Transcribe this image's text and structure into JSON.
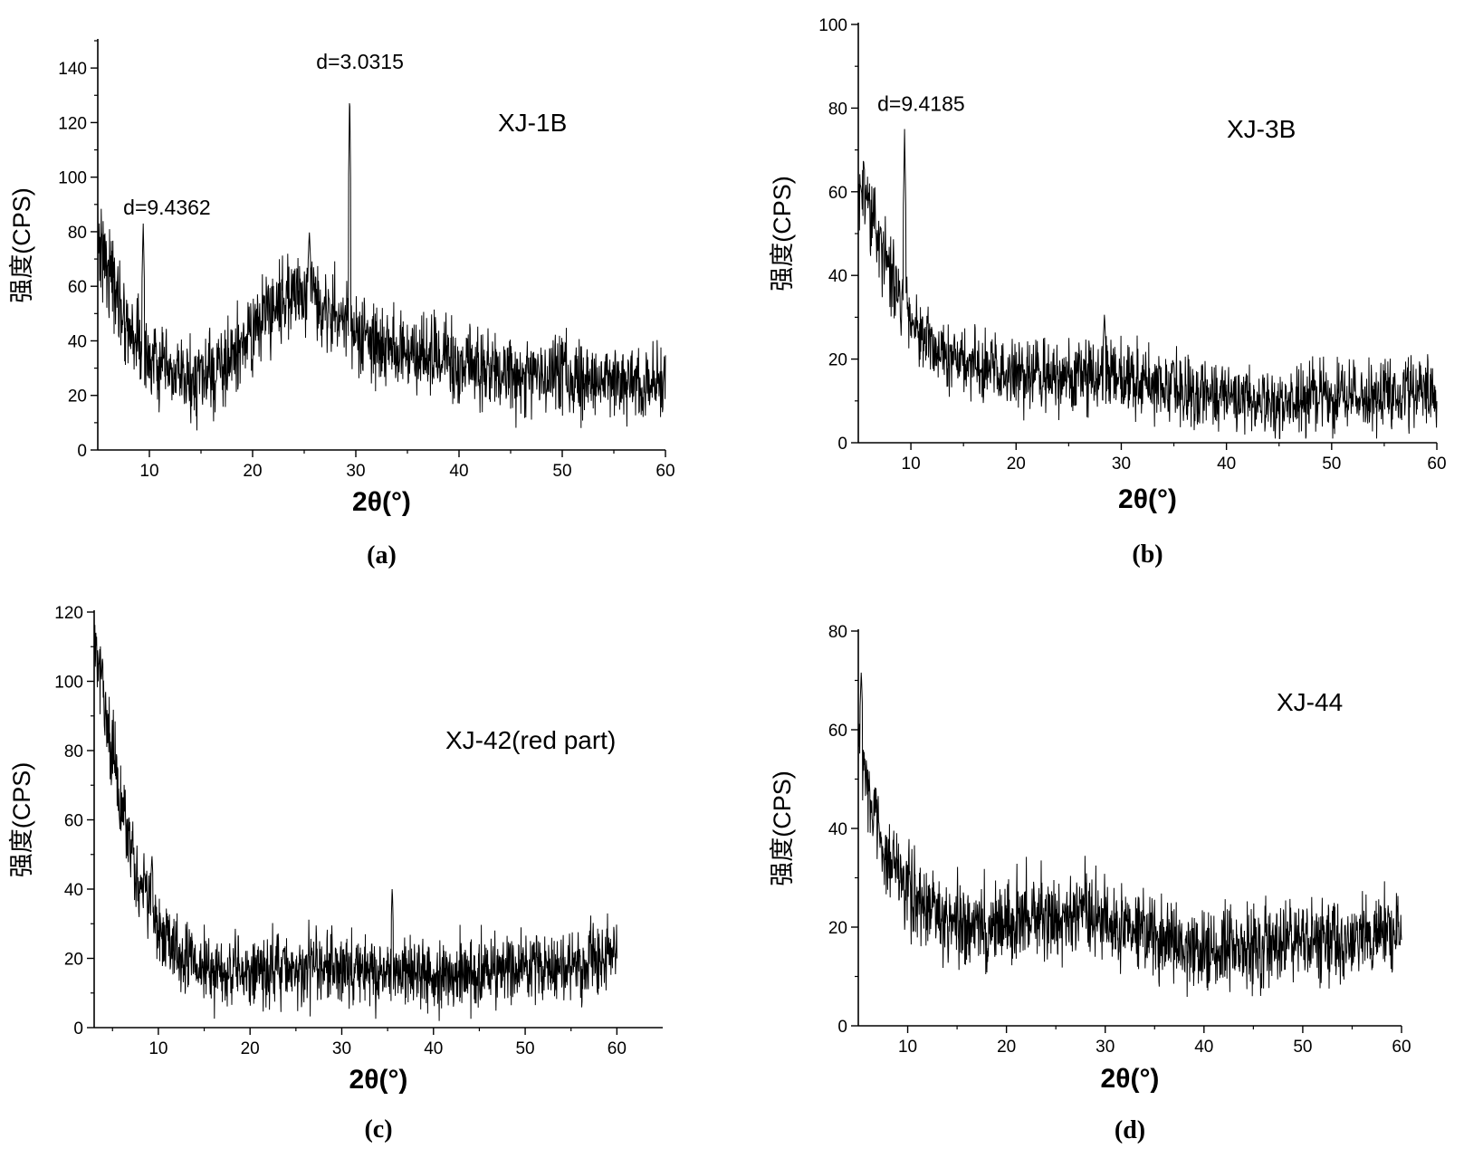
{
  "chart_data": [
    {
      "type": "line",
      "panel": "(a)",
      "caption": "(a)",
      "sample_label": "XJ-1B",
      "xlabel": "2θ(°)",
      "ylabel": "强度(CPS)",
      "xlim": [
        5,
        60
      ],
      "ylim": [
        0,
        150
      ],
      "xticks": [
        10,
        20,
        30,
        40,
        50,
        60
      ],
      "yticks": [
        0,
        20,
        40,
        60,
        80,
        100,
        120,
        140
      ],
      "grid": false,
      "annotations": [
        {
          "text": "d=9.4362",
          "x": 9.4,
          "y": 83
        },
        {
          "text": "d=3.0315",
          "x": 29.5,
          "y": 133
        }
      ],
      "series": [
        {
          "name": "XJ-1B",
          "noise": 7,
          "profile": [
            [
              5,
              78
            ],
            [
              6,
              68
            ],
            [
              7,
              55
            ],
            [
              8,
              45
            ],
            [
              9,
              40
            ],
            [
              10,
              33
            ],
            [
              12,
              27
            ],
            [
              14,
              25
            ],
            [
              16,
              27
            ],
            [
              18,
              33
            ],
            [
              20,
              43
            ],
            [
              22,
              53
            ],
            [
              24,
              58
            ],
            [
              26,
              57
            ],
            [
              28,
              50
            ],
            [
              29,
              46
            ],
            [
              30,
              42
            ],
            [
              32,
              38
            ],
            [
              35,
              36
            ],
            [
              40,
              31
            ],
            [
              45,
              28
            ],
            [
              50,
              27
            ],
            [
              55,
              26
            ],
            [
              60,
              24
            ]
          ],
          "peaks": [
            {
              "x": 9.4,
              "y": 83
            },
            {
              "x": 29.4,
              "y": 133
            },
            {
              "x": 25.5,
              "y": 80
            }
          ]
        }
      ]
    },
    {
      "type": "line",
      "panel": "(b)",
      "caption": "(b)",
      "sample_label": "XJ-3B",
      "xlabel": "2θ(°)",
      "ylabel": "强度(CPS)",
      "xlim": [
        5,
        60
      ],
      "ylim": [
        0,
        100
      ],
      "xticks": [
        10,
        20,
        30,
        40,
        50,
        60
      ],
      "yticks": [
        0,
        20,
        40,
        60,
        80,
        100
      ],
      "grid": false,
      "annotations": [
        {
          "text": "d=9.4185",
          "x": 9.4,
          "y": 75
        }
      ],
      "series": [
        {
          "name": "XJ-3B",
          "noise": 4,
          "profile": [
            [
              5,
              62
            ],
            [
              6,
              56
            ],
            [
              7,
              48
            ],
            [
              8,
              42
            ],
            [
              9,
              36
            ],
            [
              10,
              30
            ],
            [
              12,
              24
            ],
            [
              14,
              20
            ],
            [
              16,
              18
            ],
            [
              20,
              16
            ],
            [
              25,
              15
            ],
            [
              28,
              16
            ],
            [
              30,
              15
            ],
            [
              35,
              13
            ],
            [
              40,
              11
            ],
            [
              45,
              10
            ],
            [
              50,
              11
            ],
            [
              55,
              11
            ],
            [
              60,
              12
            ]
          ],
          "peaks": [
            {
              "x": 9.4,
              "y": 75
            },
            {
              "x": 28.4,
              "y": 31
            }
          ]
        }
      ]
    },
    {
      "type": "line",
      "panel": "(c)",
      "caption": "(c)",
      "sample_label": "XJ-42(red part)",
      "xlabel": "2θ(°)",
      "ylabel": "强度(CPS)",
      "xlim": [
        3,
        65
      ],
      "ylim": [
        0,
        120
      ],
      "xticks": [
        10,
        20,
        30,
        40,
        50,
        60
      ],
      "yticks": [
        0,
        20,
        40,
        60,
        80,
        100,
        120
      ],
      "grid": false,
      "annotations": [],
      "series": [
        {
          "name": "XJ-42(red part)",
          "x_end": 60,
          "noise": 5,
          "profile": [
            [
              3,
              112
            ],
            [
              4,
              95
            ],
            [
              5,
              78
            ],
            [
              6,
              63
            ],
            [
              7,
              50
            ],
            [
              8,
              42
            ],
            [
              9,
              37
            ],
            [
              10,
              28
            ],
            [
              12,
              22
            ],
            [
              14,
              19
            ],
            [
              16,
              17
            ],
            [
              18,
              16
            ],
            [
              20,
              16
            ],
            [
              25,
              17
            ],
            [
              30,
              17
            ],
            [
              35,
              16
            ],
            [
              40,
              15
            ],
            [
              45,
              16
            ],
            [
              50,
              17
            ],
            [
              55,
              18
            ],
            [
              60,
              20
            ]
          ],
          "peaks": [
            {
              "x": 35.5,
              "y": 41
            },
            {
              "x": 9.3,
              "y": 50
            }
          ]
        }
      ]
    },
    {
      "type": "line",
      "panel": "(d)",
      "caption": "(d)",
      "sample_label": "XJ-44",
      "xlabel": "2θ(°)",
      "ylabel": "强度(CPS)",
      "xlim": [
        5,
        60
      ],
      "ylim": [
        0,
        80
      ],
      "xticks": [
        10,
        20,
        30,
        40,
        50,
        60
      ],
      "yticks": [
        0,
        20,
        40,
        60,
        80
      ],
      "grid": false,
      "annotations": [],
      "series": [
        {
          "name": "XJ-44",
          "noise": 4,
          "profile": [
            [
              5,
              60
            ],
            [
              6,
              48
            ],
            [
              7,
              40
            ],
            [
              8,
              34
            ],
            [
              9,
              31
            ],
            [
              10,
              28
            ],
            [
              12,
              24
            ],
            [
              14,
              21
            ],
            [
              16,
              20
            ],
            [
              18,
              20
            ],
            [
              20,
              21
            ],
            [
              22,
              22
            ],
            [
              25,
              22
            ],
            [
              28,
              23
            ],
            [
              30,
              21
            ],
            [
              33,
              19
            ],
            [
              36,
              18
            ],
            [
              38,
              16
            ],
            [
              40,
              15
            ],
            [
              45,
              16
            ],
            [
              50,
              17
            ],
            [
              55,
              18
            ],
            [
              60,
              19
            ]
          ],
          "peaks": [
            {
              "x": 5.3,
              "y": 72
            }
          ]
        }
      ]
    }
  ]
}
